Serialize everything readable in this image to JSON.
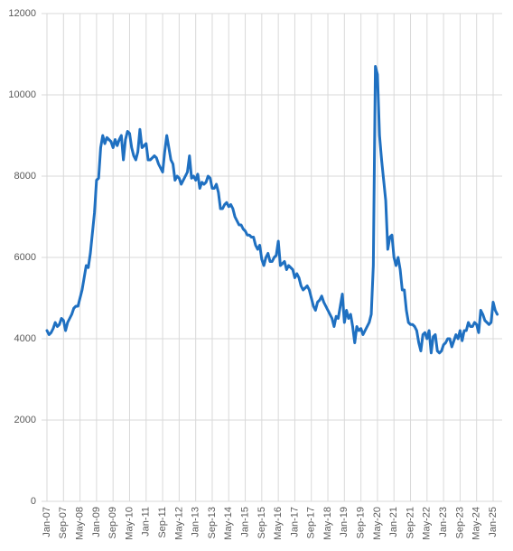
{
  "chart_data": {
    "type": "line",
    "categories": [
      "Jan-07",
      null,
      null,
      null,
      null,
      null,
      null,
      null,
      "Sep-07",
      null,
      null,
      null,
      null,
      null,
      null,
      null,
      "May-08",
      null,
      null,
      null,
      null,
      null,
      null,
      null,
      "Jan-09",
      null,
      null,
      null,
      null,
      null,
      null,
      null,
      "Sep-09",
      null,
      null,
      null,
      null,
      null,
      null,
      null,
      "May-10",
      null,
      null,
      null,
      null,
      null,
      null,
      null,
      "Jan-11",
      null,
      null,
      null,
      null,
      null,
      null,
      null,
      "Sep-11",
      null,
      null,
      null,
      null,
      null,
      null,
      null,
      "May-12",
      null,
      null,
      null,
      null,
      null,
      null,
      null,
      "Jan-13",
      null,
      null,
      null,
      null,
      null,
      null,
      null,
      "Sep-13",
      null,
      null,
      null,
      null,
      null,
      null,
      null,
      "May-14",
      null,
      null,
      null,
      null,
      null,
      null,
      null,
      "Jan-15",
      null,
      null,
      null,
      null,
      null,
      null,
      null,
      "Sep-15",
      null,
      null,
      null,
      null,
      null,
      null,
      null,
      "May-16",
      null,
      null,
      null,
      null,
      null,
      null,
      null,
      "Jan-17",
      null,
      null,
      null,
      null,
      null,
      null,
      null,
      "Sep-17",
      null,
      null,
      null,
      null,
      null,
      null,
      null,
      "May-18",
      null,
      null,
      null,
      null,
      null,
      null,
      null,
      "Jan-19",
      null,
      null,
      null,
      null,
      null,
      null,
      null,
      "Sep-19",
      null,
      null,
      null,
      null,
      null,
      null,
      null,
      "May-20",
      null,
      null,
      null,
      null,
      null,
      null,
      null,
      "Jan-21",
      null,
      null,
      null,
      null,
      null,
      null,
      null,
      "Sep-21",
      null,
      null,
      null,
      null,
      null,
      null,
      null,
      "May-22",
      null,
      null,
      null,
      null,
      null,
      null,
      null,
      "Jan-23",
      null,
      null,
      null,
      null,
      null,
      null,
      null,
      "Sep-23",
      null,
      null,
      null,
      null,
      null,
      null,
      null,
      "May-24",
      null,
      null,
      null,
      null,
      null,
      null,
      null,
      "Jan-25",
      null,
      null
    ],
    "values": [
      4200,
      4100,
      4150,
      4250,
      4400,
      4300,
      4350,
      4500,
      4450,
      4200,
      4400,
      4500,
      4600,
      4750,
      4800,
      4800,
      5000,
      5200,
      5500,
      5800,
      5750,
      6100,
      6600,
      7100,
      7900,
      7950,
      8700,
      9000,
      8800,
      8950,
      8900,
      8850,
      8700,
      8900,
      8750,
      8900,
      9000,
      8400,
      8900,
      9100,
      9050,
      8700,
      8500,
      8400,
      8600,
      9150,
      8700,
      8750,
      8800,
      8400,
      8400,
      8450,
      8500,
      8450,
      8300,
      8200,
      8100,
      8600,
      9000,
      8700,
      8400,
      8300,
      7900,
      8000,
      7950,
      7800,
      7900,
      8000,
      8100,
      8500,
      7950,
      8000,
      7900,
      8050,
      7700,
      7850,
      7800,
      7850,
      8000,
      7950,
      7700,
      7700,
      7800,
      7600,
      7200,
      7200,
      7300,
      7350,
      7250,
      7300,
      7200,
      7000,
      6900,
      6800,
      6800,
      6700,
      6650,
      6550,
      6550,
      6500,
      6500,
      6300,
      6200,
      6300,
      5950,
      5800,
      6000,
      6100,
      5900,
      5900,
      6000,
      6050,
      6400,
      5800,
      5850,
      5900,
      5700,
      5800,
      5750,
      5700,
      5500,
      5600,
      5500,
      5300,
      5200,
      5250,
      5300,
      5200,
      5000,
      4800,
      4700,
      4900,
      4950,
      5050,
      4900,
      4800,
      4700,
      4600,
      4500,
      4300,
      4550,
      4500,
      4800,
      5100,
      4400,
      4700,
      4500,
      4600,
      4300,
      3900,
      4300,
      4200,
      4250,
      4100,
      4200,
      4300,
      4400,
      4600,
      5800,
      10700,
      10500,
      9000,
      8400,
      7900,
      7400,
      6200,
      6500,
      6550,
      6000,
      5800,
      6000,
      5700,
      5200,
      5200,
      4700,
      4400,
      4350,
      4350,
      4300,
      4200,
      3900,
      3700,
      4100,
      4150,
      4000,
      4200,
      3650,
      4050,
      4100,
      3700,
      3650,
      3700,
      3850,
      3900,
      4000,
      4000,
      3800,
      3950,
      4100,
      4000,
      4200,
      3950,
      4200,
      4200,
      4400,
      4300,
      4300,
      4400,
      4350,
      4150,
      4700,
      4600,
      4450,
      4400,
      4350,
      4400,
      4900,
      4700,
      4600
    ],
    "color": "#1f70c1",
    "ylim": [
      0,
      12000
    ],
    "yticks": [
      0,
      2000,
      4000,
      6000,
      8000,
      10000,
      12000
    ],
    "grid": true
  }
}
